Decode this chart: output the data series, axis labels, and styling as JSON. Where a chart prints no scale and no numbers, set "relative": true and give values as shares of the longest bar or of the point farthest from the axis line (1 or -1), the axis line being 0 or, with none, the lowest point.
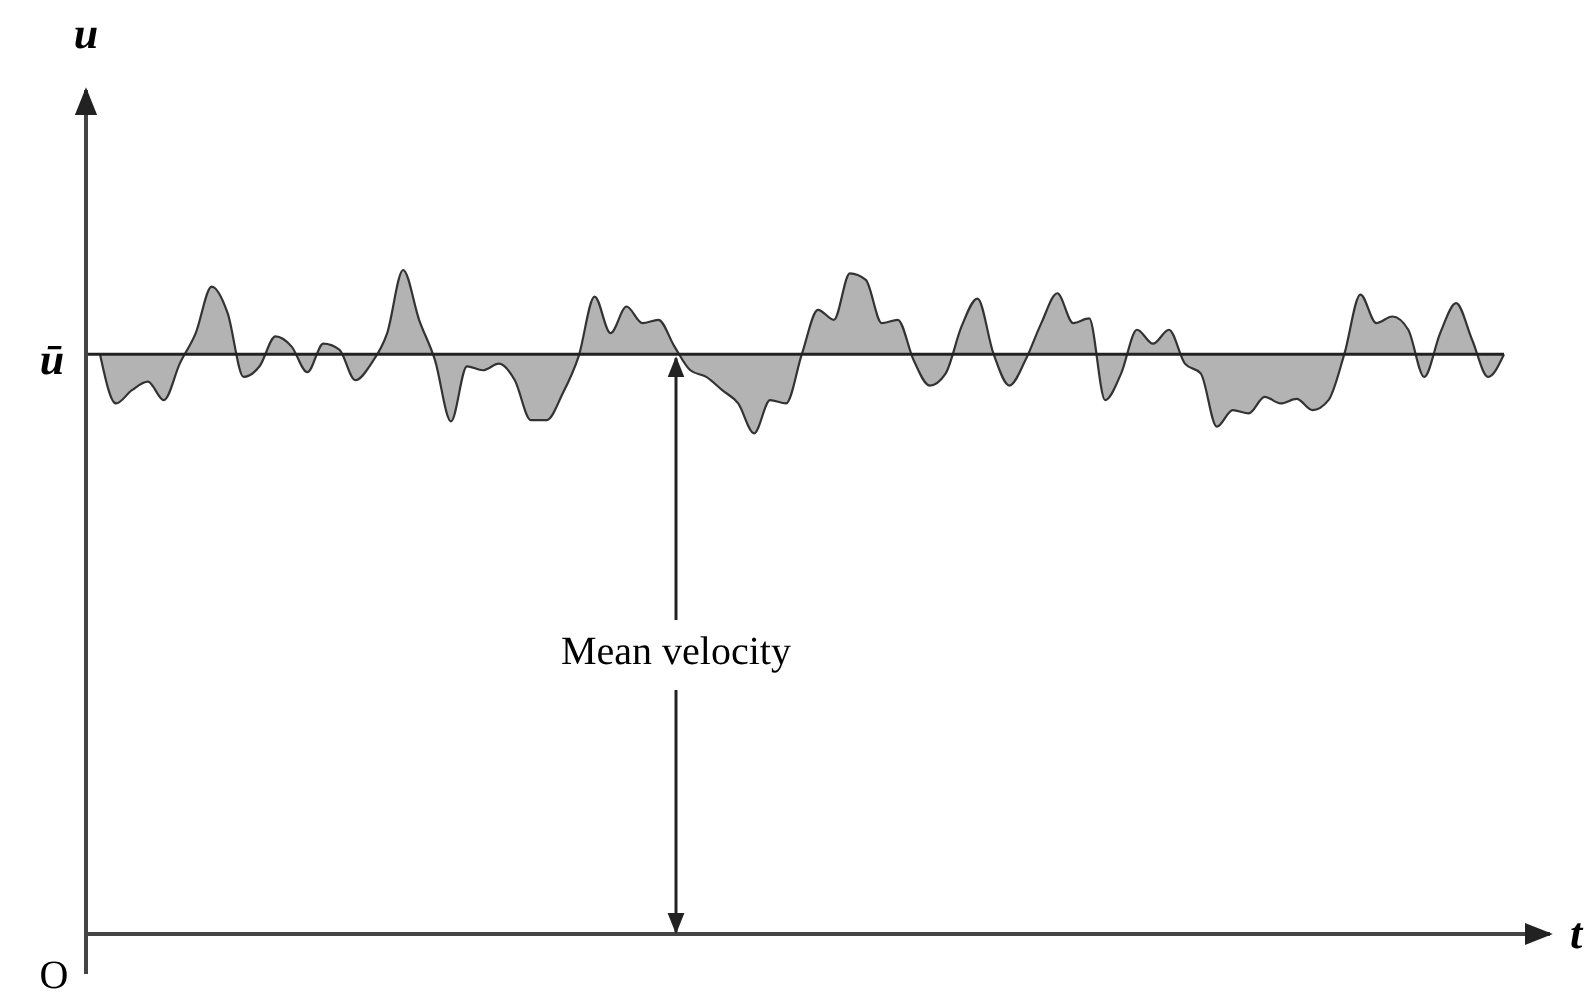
{
  "chart_data": {
    "type": "line",
    "relative": true,
    "xlabel": "t",
    "ylabel": "u",
    "categories": [
      null,
      null,
      null,
      null,
      null,
      null,
      null,
      null,
      null,
      null,
      null,
      null,
      null,
      null,
      null,
      null,
      null,
      null,
      null,
      null,
      null,
      null,
      null,
      null,
      null,
      null,
      null,
      null,
      null,
      null,
      null,
      null,
      null,
      null,
      null,
      null,
      null,
      null,
      null,
      null,
      null,
      null,
      null,
      null,
      null,
      null,
      null,
      null,
      null,
      null,
      null,
      null,
      null,
      null,
      null,
      null,
      null,
      null,
      null,
      null,
      null,
      null,
      null,
      null,
      null,
      null,
      null,
      null,
      null,
      null,
      null,
      null,
      null,
      null,
      null,
      null,
      null,
      null,
      null,
      null,
      null,
      null,
      null,
      null,
      null,
      null,
      null,
      null,
      null
    ],
    "series": [
      {
        "color": "#333333",
        "values": [
          0.873,
          0.799,
          0.819,
          0.832,
          0.804,
          0.859,
          0.905,
          0.975,
          0.935,
          0.839,
          0.855,
          0.9,
          0.885,
          0.846,
          0.889,
          0.88,
          0.834,
          0.859,
          0.905,
          1,
          0.925,
          0.864,
          0.772,
          0.855,
          0.849,
          0.859,
          0.834,
          0.774,
          0.774,
          0.814,
          0.87,
          0.96,
          0.905,
          0.945,
          0.92,
          0.925,
          0.885,
          0.849,
          0.839,
          0.819,
          0.799,
          0.754,
          0.804,
          0.799,
          0.874,
          0.94,
          0.925,
          0.995,
          0.985,
          0.92,
          0.925,
          0.864,
          0.826,
          0.844,
          0.915,
          0.957,
          0.874,
          0.826,
          0.864,
          0.92,
          0.965,
          0.92,
          0.927,
          0.804,
          0.844,
          0.91,
          0.889,
          0.91,
          0.859,
          0.844,
          0.764,
          0.789,
          0.784,
          0.809,
          0.799,
          0.806,
          0.789,
          0.804,
          0.874,
          0.963,
          0.92,
          0.93,
          0.91,
          0.839,
          0.905,
          0.95,
          0.895,
          0.839,
          0.873
        ]
      }
    ],
    "ref_lines": [
      {
        "axis": "y",
        "value": 0.873,
        "label": "ū"
      }
    ],
    "annotations": [
      "Mean velocity",
      "O"
    ]
  }
}
